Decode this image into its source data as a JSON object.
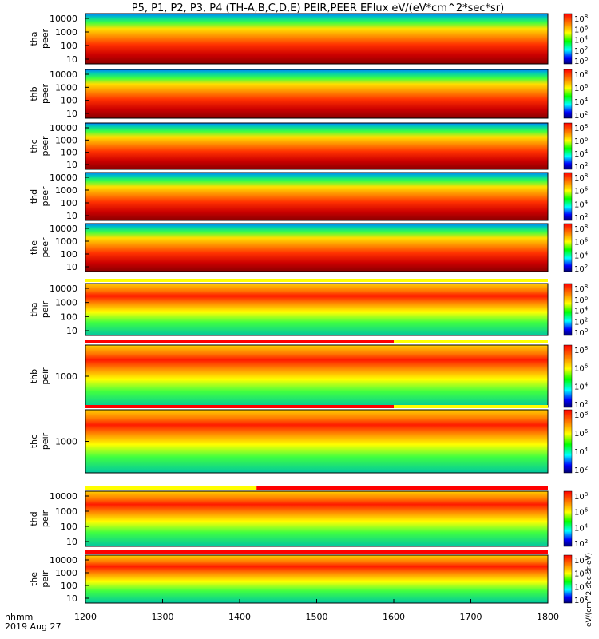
{
  "chart_data": {
    "type": "heatmap",
    "title": "P5, P1, P2, P3, P4 (TH-A,B,C,D,E) PEIR,PEER EFlux eV/(eV*cm^2*sec*sr)",
    "x_axis": {
      "range": [
        1200,
        1800
      ],
      "tick_labels": [
        "1200",
        "1300",
        "1400",
        "1500",
        "1600",
        "1700",
        "1800"
      ],
      "footer_label": "hhmm",
      "date_label": "2019 Aug 27"
    },
    "colorbar_label": "eV/(cm^2-sec-sr-eV)",
    "panels": [
      {
        "id": "tha_peer",
        "ylabel": "tha peer",
        "y_scale": "log",
        "y_ticks": [
          "10000",
          "1000",
          "100",
          "10"
        ],
        "y_ticks_values": [
          10000,
          1000,
          100,
          10
        ],
        "cbar_ticks": [
          "10^8",
          "10^6",
          "10^4",
          "10^2",
          "10^0"
        ],
        "bar_above": null
      },
      {
        "id": "thb_peer",
        "ylabel": "thb peer",
        "y_scale": "log",
        "y_ticks": [
          "10000",
          "1000",
          "100",
          "10"
        ],
        "y_ticks_values": [
          10000,
          1000,
          100,
          10
        ],
        "cbar_ticks": [
          "10^8",
          "10^6",
          "10^4",
          "10^2"
        ],
        "bar_above": null
      },
      {
        "id": "thc_peer",
        "ylabel": "thc peer",
        "y_scale": "log",
        "y_ticks": [
          "10000",
          "1000",
          "100",
          "10"
        ],
        "y_ticks_values": [
          10000,
          1000,
          100,
          10
        ],
        "cbar_ticks": [
          "10^8",
          "10^6",
          "10^4",
          "10^2"
        ],
        "bar_above": null
      },
      {
        "id": "thd_peer",
        "ylabel": "thd peer",
        "y_scale": "log",
        "y_ticks": [
          "10000",
          "1000",
          "100",
          "10"
        ],
        "y_ticks_values": [
          10000,
          1000,
          100,
          10
        ],
        "cbar_ticks": [
          "10^8",
          "10^6",
          "10^4",
          "10^2"
        ],
        "bar_above": null
      },
      {
        "id": "the_peer",
        "ylabel": "the peer",
        "y_scale": "log",
        "y_ticks": [
          "10000",
          "1000",
          "100",
          "10"
        ],
        "y_ticks_values": [
          10000,
          1000,
          100,
          10
        ],
        "cbar_ticks": [
          "10^8",
          "10^6",
          "10^4",
          "10^2"
        ],
        "bar_above": null
      },
      {
        "id": "tha_peir",
        "ylabel": "tha peir",
        "y_scale": "log",
        "y_ticks": [
          "10000",
          "1000",
          "100",
          "10"
        ],
        "y_ticks_values": [
          10000,
          1000,
          100,
          10
        ],
        "cbar_ticks": [
          "10^8",
          "10^6",
          "10^4",
          "10^2",
          "10^0"
        ],
        "bar_above": [
          {
            "from": 1200,
            "to": 1800,
            "color": "#ffff00"
          }
        ]
      },
      {
        "id": "thb_peir",
        "ylabel": "thb peir",
        "y_scale": "log",
        "y_ticks": [
          "1000"
        ],
        "y_ticks_values": [
          1000
        ],
        "cbar_ticks": [
          "10^8",
          "10^6",
          "10^4",
          "10^2"
        ],
        "bar_above": [
          {
            "from": 1200,
            "to": 1600,
            "color": "#ff0000"
          },
          {
            "from": 1600,
            "to": 1800,
            "color": "#ffff00"
          }
        ]
      },
      {
        "id": "thc_peir",
        "ylabel": "thc peir",
        "y_scale": "log",
        "y_ticks": [
          "1000"
        ],
        "y_ticks_values": [
          1000
        ],
        "cbar_ticks": [
          "10^8",
          "10^6",
          "10^4",
          "10^2"
        ],
        "bar_above": [
          {
            "from": 1200,
            "to": 1600,
            "color": "#ff0000"
          },
          {
            "from": 1600,
            "to": 1800,
            "color": "#ffff00"
          }
        ]
      },
      {
        "id": "thd_peir",
        "ylabel": "thd peir",
        "y_scale": "log",
        "y_ticks": [
          "10000",
          "1000",
          "100",
          "10"
        ],
        "y_ticks_values": [
          10000,
          1000,
          100,
          10
        ],
        "cbar_ticks": [
          "10^8",
          "10^6",
          "10^4",
          "10^2"
        ],
        "bar_above": [
          {
            "from": 1200,
            "to": 1422,
            "color": "#ffff00"
          },
          {
            "from": 1422,
            "to": 1800,
            "color": "#ff0000"
          }
        ]
      },
      {
        "id": "the_peir",
        "ylabel": "the peir",
        "y_scale": "log",
        "y_ticks": [
          "10000",
          "1000",
          "100",
          "10"
        ],
        "y_ticks_values": [
          10000,
          1000,
          100,
          10
        ],
        "cbar_ticks": [
          "10^8",
          "10^6",
          "10^4",
          "10^2"
        ],
        "bar_above": [
          {
            "from": 1200,
            "to": 1800,
            "color": "#ff0000"
          }
        ]
      }
    ]
  }
}
